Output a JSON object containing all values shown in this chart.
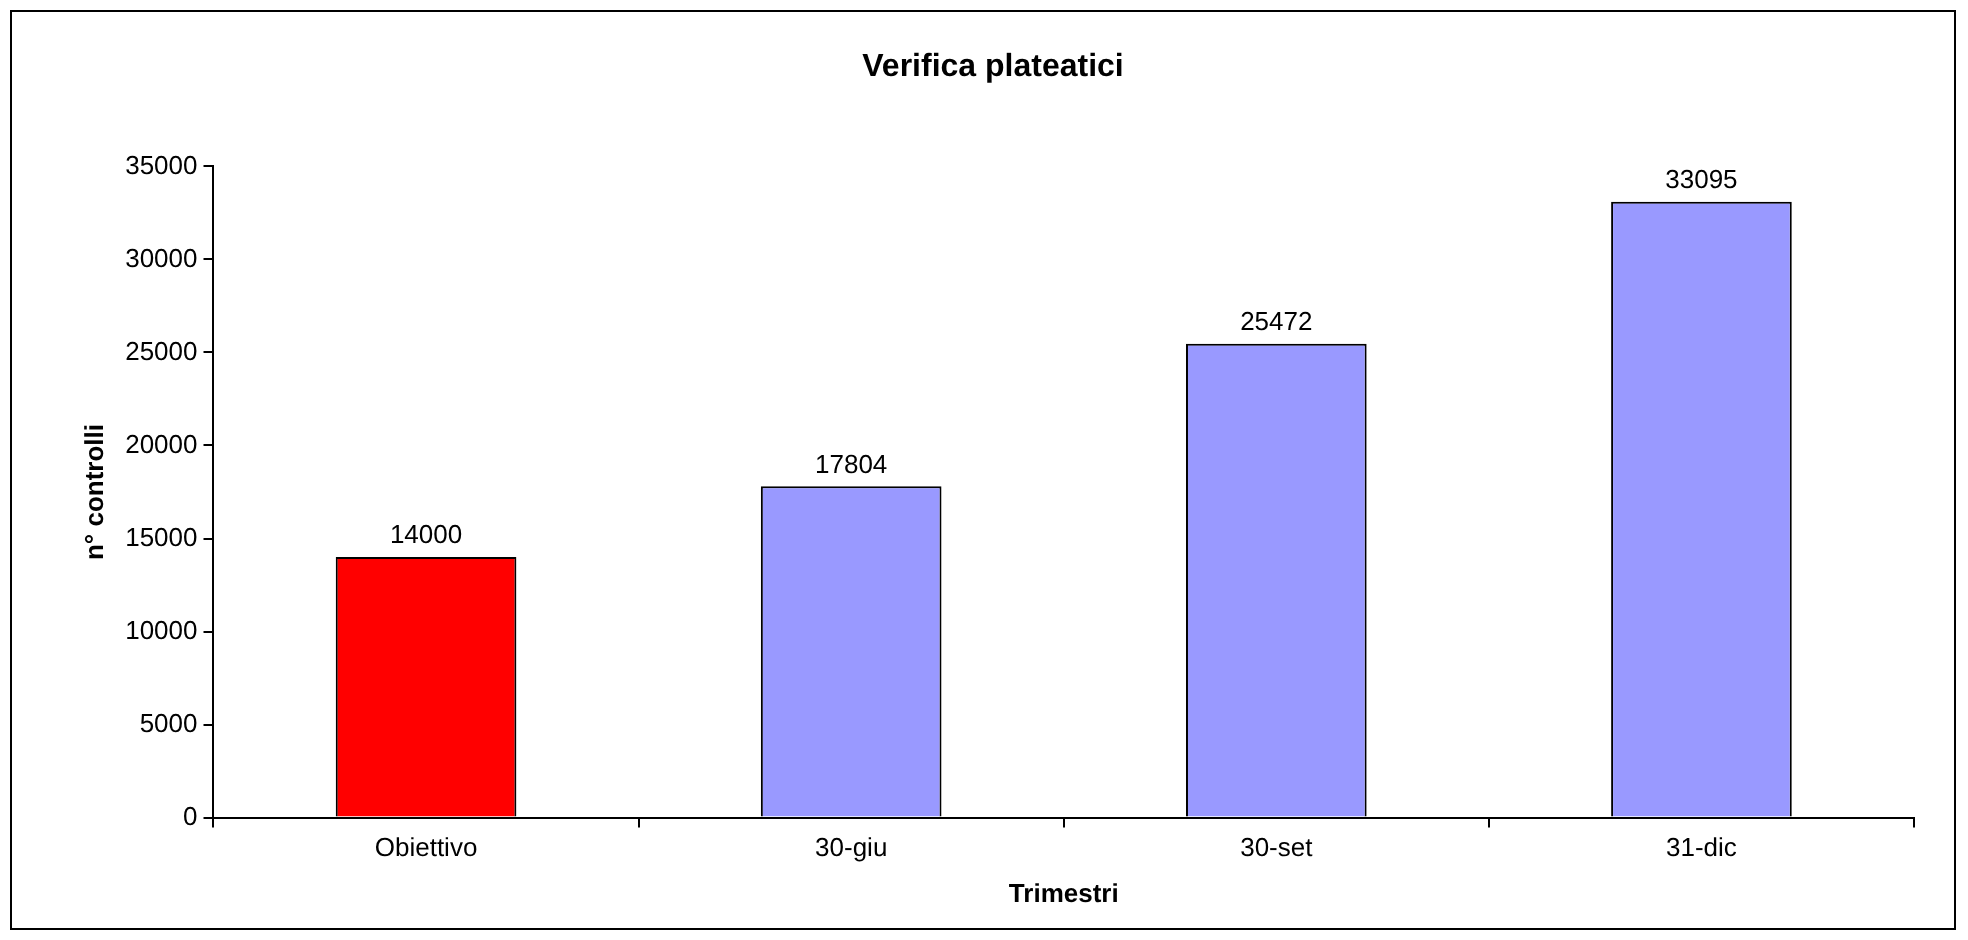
{
  "chart_data": {
    "type": "bar",
    "title": "Verifica plateatici",
    "xlabel": "Trimestri",
    "ylabel": "n° controlli",
    "categories": [
      "Obiettivo",
      "30-giu",
      "30-set",
      "31-dic"
    ],
    "values": [
      14000,
      17804,
      25472,
      33095
    ],
    "colors": [
      "#ff0000",
      "#9999ff",
      "#9999ff",
      "#9999ff"
    ],
    "ylim": [
      0,
      35000
    ],
    "yticks": [
      0,
      5000,
      10000,
      15000,
      20000,
      25000,
      30000,
      35000
    ],
    "grid": false,
    "legend": false,
    "data_labels": true
  }
}
